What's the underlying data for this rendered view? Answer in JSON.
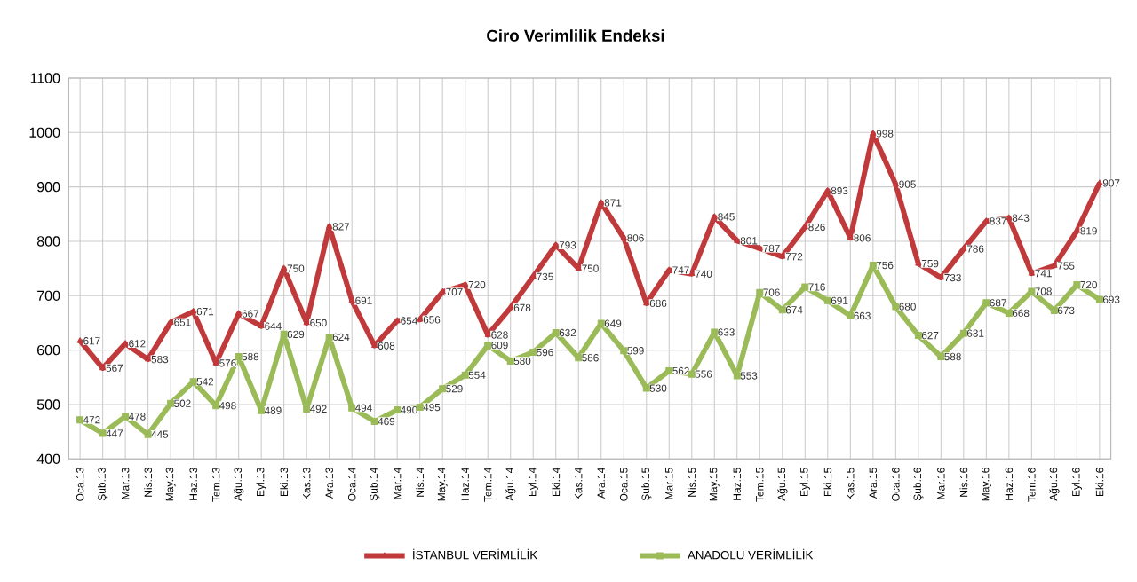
{
  "chart_data": {
    "type": "line",
    "title": "Ciro Verimlilik Endeksi",
    "categories": [
      "Oca.13",
      "Şub.13",
      "Mar.13",
      "Nis.13",
      "May.13",
      "Haz.13",
      "Tem.13",
      "Ağu.13",
      "Eyl.13",
      "Eki.13",
      "Kas.13",
      "Ara.13",
      "Oca.14",
      "Şub.14",
      "Mar.14",
      "Nis.14",
      "May.14",
      "Haz.14",
      "Tem.14",
      "Ağu.14",
      "Eyl.14",
      "Eki.14",
      "Kas.14",
      "Ara.14",
      "Oca.15",
      "Şub.15",
      "Mar.15",
      "Nis.15",
      "May.15",
      "Haz.15",
      "Tem.15",
      "Ağu.15",
      "Eyl.15",
      "Eki.15",
      "Kas.15",
      "Ara.15",
      "Oca.16",
      "Şub.16",
      "Mar.16",
      "Nis.16",
      "May.16",
      "Haz.16",
      "Tem.16",
      "Ağu.16",
      "Eyl.16",
      "Eki.16"
    ],
    "series": [
      {
        "name": "İSTANBUL VERİMLİLİK",
        "color": "#c0393b",
        "marker": "triangle",
        "values": [
          617,
          567,
          612,
          583,
          651,
          671,
          576,
          667,
          644,
          750,
          650,
          827,
          691,
          608,
          654,
          656,
          707,
          720,
          628,
          678,
          735,
          793,
          750,
          871,
          806,
          686,
          747,
          740,
          845,
          801,
          787,
          772,
          826,
          893,
          806,
          998,
          905,
          759,
          733,
          786,
          837,
          843,
          741,
          755,
          819,
          907
        ]
      },
      {
        "name": "ANADOLU VERİMLİLİK",
        "color": "#9bbb59",
        "marker": "square",
        "values": [
          472,
          447,
          478,
          445,
          502,
          542,
          498,
          588,
          489,
          629,
          492,
          624,
          494,
          469,
          490,
          495,
          529,
          554,
          609,
          580,
          596,
          632,
          586,
          649,
          599,
          530,
          562,
          556,
          633,
          553,
          706,
          674,
          716,
          691,
          663,
          756,
          680,
          627,
          588,
          631,
          687,
          668,
          708,
          673,
          720,
          693
        ]
      }
    ],
    "ylim": [
      400,
      1100
    ],
    "yticks": [
      400,
      500,
      600,
      700,
      800,
      900,
      1000,
      1100
    ],
    "grid": true,
    "legend": "bottom",
    "data_labels": true
  }
}
